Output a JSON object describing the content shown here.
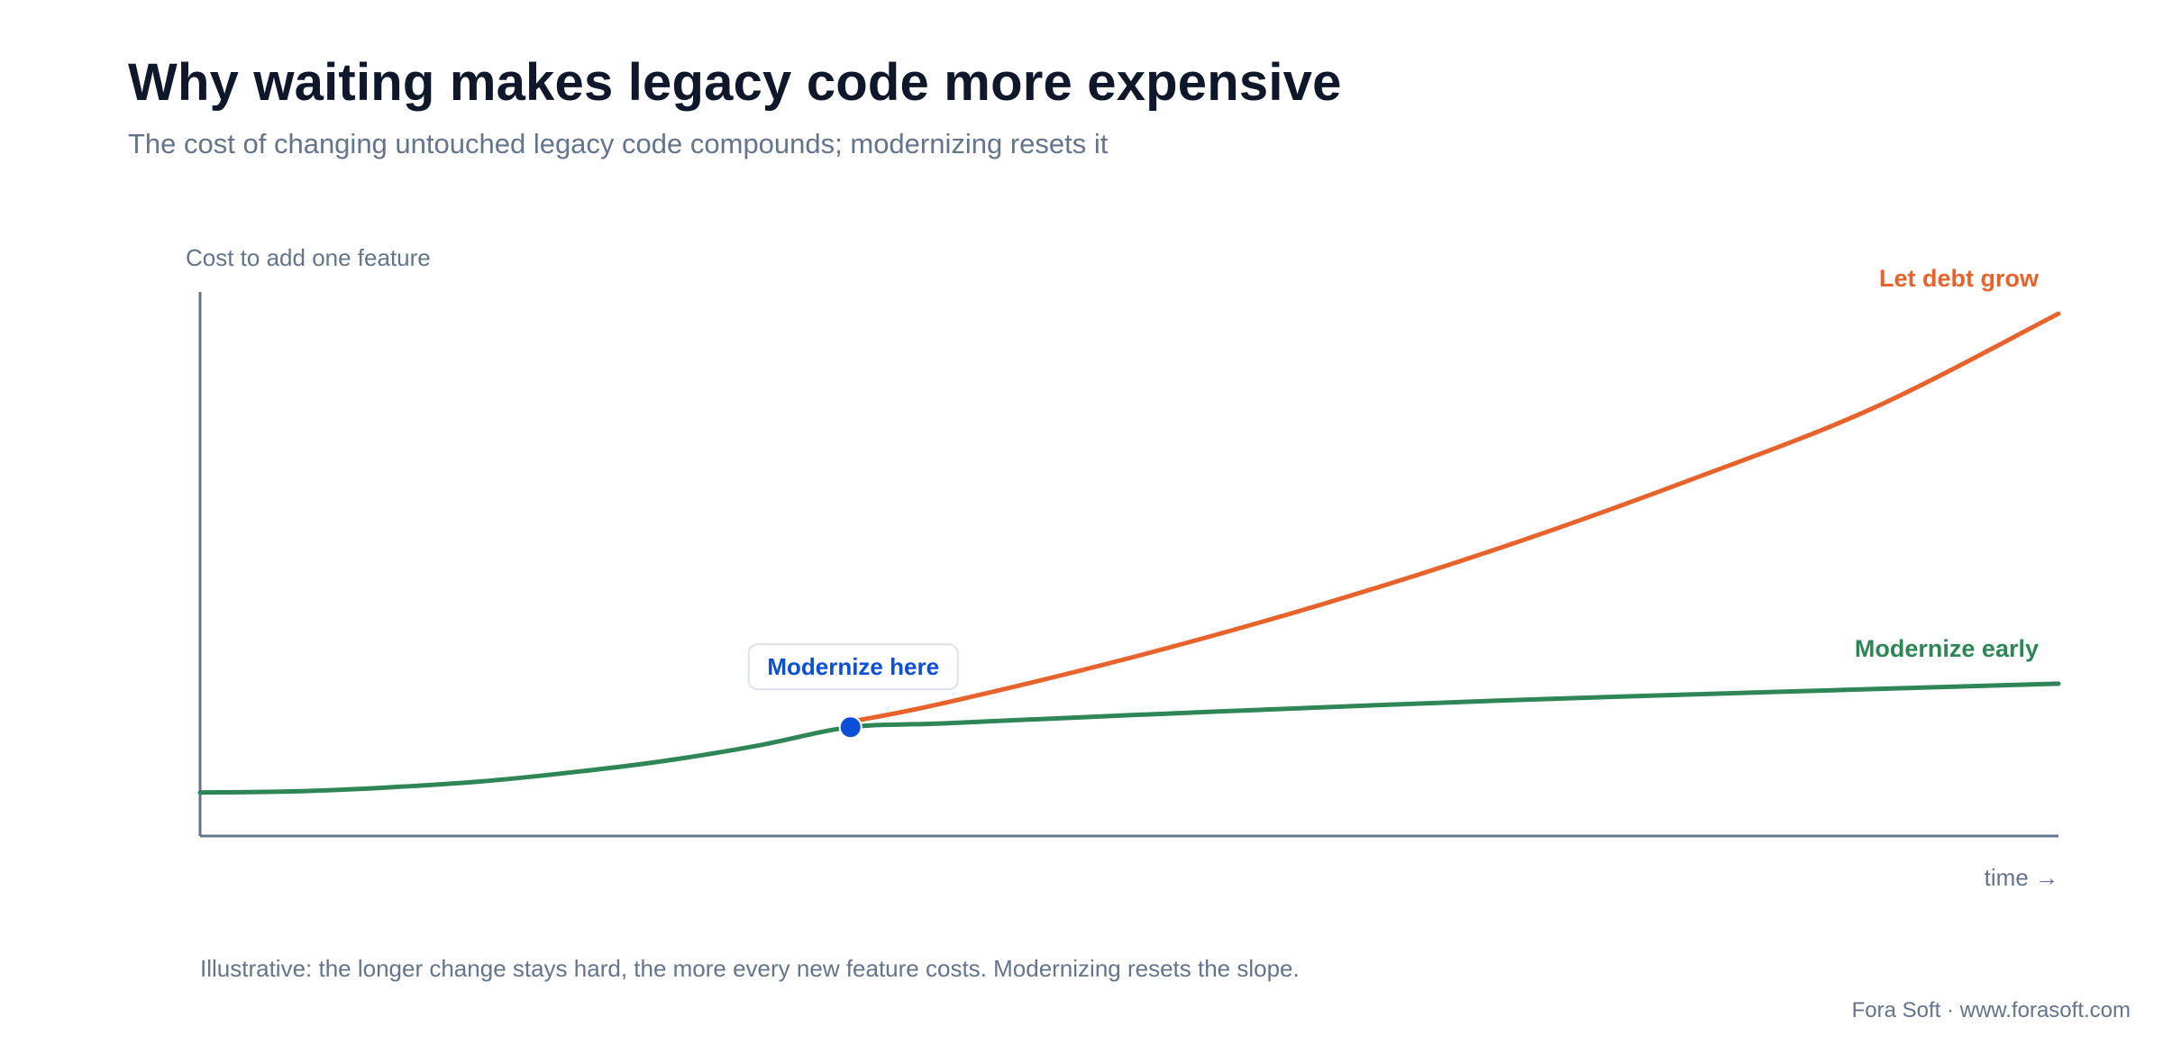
{
  "header": {
    "title": "Why waiting makes legacy code more expensive",
    "subtitle": "The cost of changing untouched legacy code compounds; modernizing resets it"
  },
  "footer": {
    "note": "Illustrative: the longer change stays hard, the more every new feature costs. Modernizing resets the slope.",
    "credit": "Fora Soft · www.forasoft.com"
  },
  "colors": {
    "debt": "#e8622c",
    "modernize": "#2e8555",
    "marker": "#0b4fd8",
    "axis": "#64748b"
  },
  "chart_data": {
    "type": "line",
    "title": "Why waiting makes legacy code more expensive",
    "ylabel": "Cost to add one feature",
    "xlabel": "time →",
    "xlim": [
      0,
      10
    ],
    "ylim": [
      0,
      10
    ],
    "grid": false,
    "series": [
      {
        "name": "Let debt grow",
        "color": "#e8622c",
        "x": [
          3.5,
          4,
          5,
          6,
          7,
          8,
          9,
          10
        ],
        "y": [
          2.1,
          2.44,
          3.27,
          4.22,
          5.3,
          6.52,
          7.86,
          9.6
        ]
      },
      {
        "name": "Modernize early",
        "color": "#2e8555",
        "x": [
          0,
          0.5,
          1,
          1.5,
          2,
          2.5,
          3,
          3.5,
          4,
          5,
          6,
          7,
          8,
          9,
          10
        ],
        "y": [
          0.8,
          0.82,
          0.89,
          1.0,
          1.17,
          1.38,
          1.66,
          2.0,
          2.07,
          2.22,
          2.36,
          2.49,
          2.6,
          2.7,
          2.8
        ]
      }
    ],
    "annotation": {
      "label": "Modernize here",
      "x": 3.5,
      "y": 2.0
    }
  }
}
